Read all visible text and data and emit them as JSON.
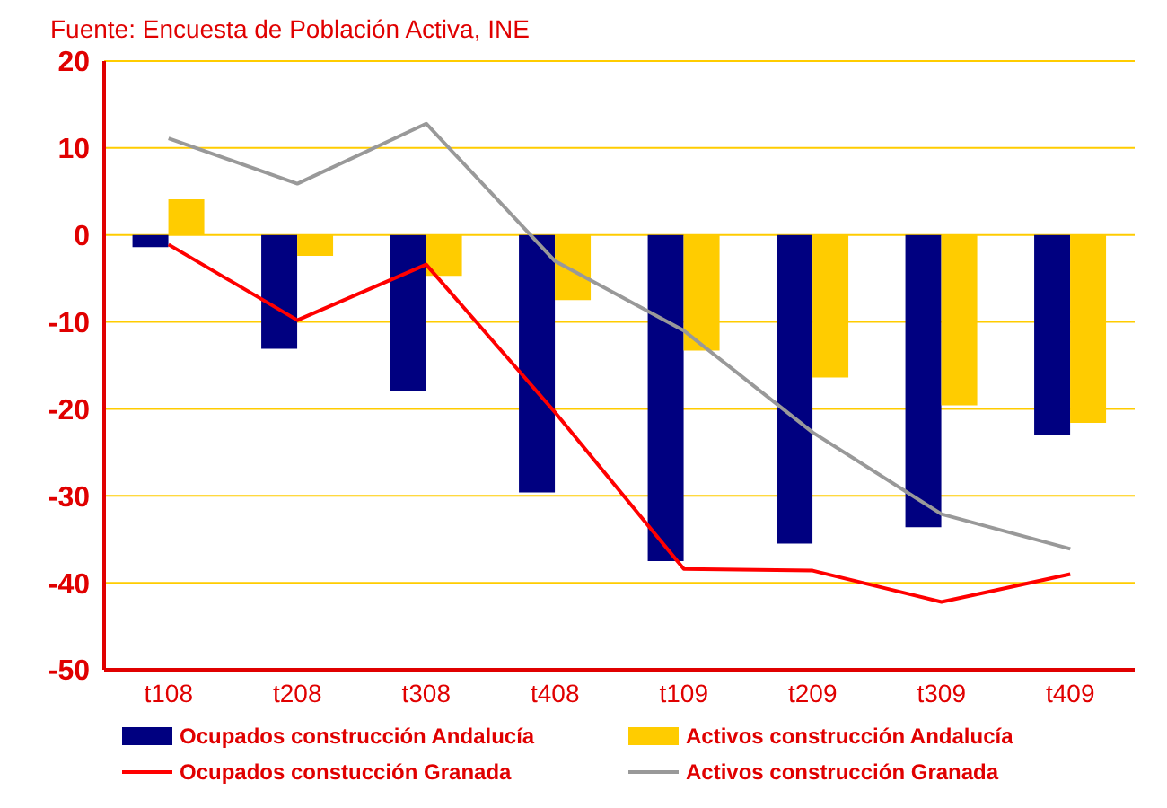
{
  "chart_data": {
    "type": "bar",
    "annotations": [
      "Fuente: Encuesta de Población Activa, INE"
    ],
    "categories": [
      "t108",
      "t208",
      "t308",
      "t408",
      "t109",
      "t209",
      "t309",
      "t409"
    ],
    "series": [
      {
        "name": "Ocupados construcción Andalucía",
        "color": "#000080",
        "values": [
          -1.4,
          -13.1,
          -18,
          -29.6,
          -37.5,
          -35.5,
          -33.6,
          -23
        ]
      },
      {
        "name": "Activos construcción Andalucía",
        "color": "#ffcc00",
        "values": [
          4.1,
          -2.4,
          -4.7,
          -7.5,
          -13.3,
          -16.4,
          -19.6,
          -21.6
        ]
      },
      {
        "name": "Ocupados constucción Granada",
        "type": "line",
        "color": "#ff0000",
        "values": [
          -1.1,
          -9.8,
          -3.4,
          -20.4,
          -38.4,
          -38.6,
          -42.2,
          -39
        ]
      },
      {
        "name": "Activos construcción Granada",
        "type": "line",
        "color": "#999999",
        "values": [
          11.1,
          5.9,
          12.8,
          -3,
          -11,
          -22.7,
          -32.1,
          -36.1
        ]
      }
    ],
    "ylim": [
      -50,
      20
    ],
    "yticks": [
      -50,
      -40,
      -30,
      -20,
      -10,
      0,
      10,
      20
    ],
    "grid": "y",
    "legend": "bottom",
    "marker": "none"
  }
}
